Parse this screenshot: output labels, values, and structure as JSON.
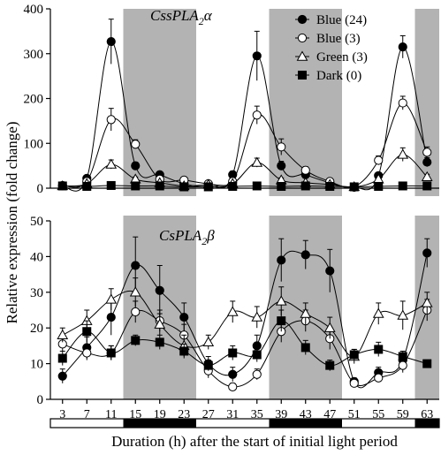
{
  "chart_data": [
    {
      "type": "line",
      "panel": "top",
      "gene_label": {
        "prefix": "CssPLA",
        "sub": "2",
        "suffix": "α"
      },
      "x": [
        3,
        7,
        11,
        15,
        19,
        23,
        27,
        31,
        35,
        39,
        43,
        47,
        51,
        55,
        59,
        63
      ],
      "ylim": [
        0,
        400
      ],
      "yticks": [
        0,
        100,
        200,
        300,
        400
      ],
      "series": [
        {
          "name": "Blue (24)",
          "marker": "filled-circle",
          "values": [
            5,
            22,
            327,
            50,
            30,
            10,
            5,
            30,
            295,
            50,
            30,
            12,
            2,
            28,
            315,
            58
          ],
          "errors": [
            2,
            5,
            50,
            8,
            6,
            3,
            2,
            8,
            55,
            10,
            8,
            4,
            1,
            6,
            25,
            10
          ]
        },
        {
          "name": "Blue (3)",
          "marker": "open-circle",
          "values": [
            6,
            15,
            153,
            98,
            20,
            18,
            10,
            15,
            163,
            92,
            40,
            15,
            3,
            62,
            190,
            80
          ],
          "errors": [
            2,
            4,
            25,
            10,
            6,
            5,
            3,
            5,
            20,
            18,
            8,
            4,
            2,
            10,
            15,
            12
          ]
        },
        {
          "name": "Green (3)",
          "marker": "open-triangle",
          "values": [
            5,
            10,
            53,
            20,
            12,
            5,
            8,
            10,
            57,
            18,
            12,
            8,
            3,
            20,
            75,
            25
          ],
          "errors": [
            2,
            3,
            10,
            5,
            3,
            2,
            2,
            3,
            10,
            5,
            3,
            2,
            1,
            5,
            15,
            6
          ]
        },
        {
          "name": "Dark (0)",
          "marker": "filled-square",
          "values": [
            5,
            4,
            6,
            5,
            5,
            3,
            3,
            4,
            5,
            4,
            5,
            4,
            3,
            4,
            5,
            5
          ],
          "errors": [
            1,
            1,
            1,
            1,
            1,
            1,
            1,
            1,
            1,
            1,
            1,
            1,
            1,
            1,
            1,
            1
          ]
        }
      ]
    },
    {
      "type": "line",
      "panel": "bottom",
      "gene_label": {
        "prefix": "CsPLA",
        "sub": "2",
        "suffix": "β"
      },
      "x": [
        3,
        7,
        11,
        15,
        19,
        23,
        27,
        31,
        35,
        39,
        43,
        47,
        51,
        55,
        59,
        63
      ],
      "ylim": [
        0,
        50
      ],
      "yticks": [
        0,
        10,
        20,
        30,
        40,
        50
      ],
      "series": [
        {
          "name": "Blue (24)",
          "marker": "filled-circle",
          "values": [
            6.5,
            14.5,
            23,
            37.5,
            30.5,
            23,
            10,
            7,
            15,
            39,
            40.5,
            36,
            5,
            7.5,
            11,
            41
          ],
          "errors": [
            2,
            3,
            5,
            8,
            7,
            4,
            2,
            2,
            3,
            6,
            4,
            6,
            1,
            1.5,
            2,
            4
          ]
        },
        {
          "name": "Blue (3)",
          "marker": "open-circle",
          "values": [
            15.5,
            13,
            13,
            24.5,
            22,
            18,
            8,
            3.5,
            7,
            19,
            22,
            17,
            4.5,
            6,
            9.5,
            25
          ],
          "errors": [
            2,
            2,
            2,
            3,
            3,
            3,
            2,
            1,
            1.5,
            3,
            3,
            3,
            1,
            1,
            2,
            3
          ]
        },
        {
          "name": "Green (3)",
          "marker": "open-triangle",
          "values": [
            18,
            22,
            28,
            30,
            21,
            15,
            16,
            24.5,
            23,
            27.5,
            24,
            20,
            12,
            24,
            23.5,
            27
          ],
          "errors": [
            2,
            3,
            3,
            4,
            3,
            3,
            2,
            3,
            3,
            4,
            3,
            3,
            2,
            3,
            4,
            3
          ]
        },
        {
          "name": "Dark (0)",
          "marker": "filled-square",
          "values": [
            11.5,
            19,
            13,
            16.5,
            16,
            13.5,
            9.5,
            13,
            12.5,
            22,
            14.5,
            9.5,
            12.5,
            14,
            12,
            10
          ],
          "errors": [
            2,
            3,
            2,
            1.5,
            2,
            2,
            1.5,
            2,
            2,
            3,
            2,
            1.5,
            1.5,
            2,
            1.5,
            1
          ]
        }
      ]
    }
  ],
  "x_tick_labels": [
    "3",
    "7",
    "11",
    "15",
    "19",
    "23",
    "27",
    "31",
    "35",
    "39",
    "43",
    "47",
    "51",
    "55",
    "59",
    "63"
  ],
  "dark_periods": [
    [
      13,
      25
    ],
    [
      37,
      49
    ],
    [
      61,
      65
    ]
  ],
  "x_range": [
    1,
    65
  ],
  "ylabel": "Relative expression (fold change)",
  "xlabel": "Duration (h) after the start of initial light period",
  "legend_position": "top-right"
}
